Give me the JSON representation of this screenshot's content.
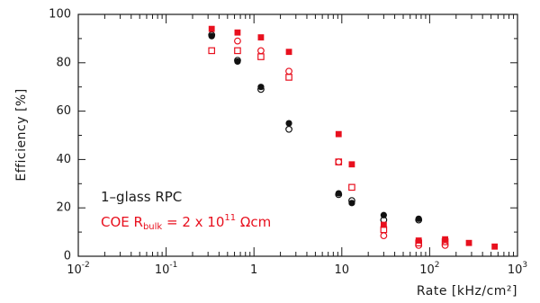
{
  "chart_data": {
    "type": "scatter",
    "xlabel": "Rate [kHz/cm²]",
    "ylabel": "Efficiency [%]",
    "x_scale": "log",
    "xlim": [
      0.01,
      1000
    ],
    "ylim": [
      0,
      100
    ],
    "grid": false,
    "yticks": [
      "0",
      "20",
      "40",
      "60",
      "80",
      "100"
    ],
    "xtick_major": [
      {
        "base": "10",
        "exp": "-2"
      },
      {
        "base": "10",
        "exp": "-1"
      },
      {
        "base": "1",
        "exp": ""
      },
      {
        "base": "10",
        "exp": ""
      },
      {
        "base": "10",
        "exp": "2"
      },
      {
        "base": "10",
        "exp": "3"
      }
    ],
    "annotations": {
      "line1": "1–glass RPC",
      "line2_prefix": "COE R",
      "line2_sub": "bulk",
      "line2_mid": " = 2 x 10",
      "line2_sup": "11",
      "line2_suffix": " Ωcm"
    },
    "series": [
      {
        "marker": "filled-circle",
        "color": "#111111",
        "points": [
          [
            0.33,
            91
          ],
          [
            0.65,
            80.5
          ],
          [
            1.2,
            70
          ],
          [
            2.5,
            55
          ],
          [
            9.2,
            26
          ],
          [
            13,
            22
          ],
          [
            30,
            17
          ],
          [
            75,
            15.5
          ]
        ]
      },
      {
        "marker": "open-circle",
        "color": "#111111",
        "points": [
          [
            0.33,
            91.5
          ],
          [
            0.65,
            81
          ],
          [
            1.2,
            69
          ],
          [
            2.5,
            52.5
          ],
          [
            9.2,
            25.5
          ],
          [
            13,
            23
          ],
          [
            30,
            15
          ],
          [
            75,
            15
          ]
        ]
      },
      {
        "marker": "filled-square",
        "color": "#e8101e",
        "points": [
          [
            0.33,
            94
          ],
          [
            0.65,
            92.5
          ],
          [
            1.2,
            90.5
          ],
          [
            2.5,
            84.5
          ],
          [
            9.2,
            50.5
          ],
          [
            13,
            38
          ],
          [
            30,
            13
          ],
          [
            75,
            6.5
          ],
          [
            150,
            7
          ],
          [
            280,
            5.5
          ],
          [
            550,
            4
          ]
        ]
      },
      {
        "marker": "open-square",
        "color": "#e8101e",
        "points": [
          [
            0.33,
            85
          ],
          [
            0.65,
            85
          ],
          [
            1.2,
            82.5
          ],
          [
            2.5,
            74
          ],
          [
            9.2,
            39
          ],
          [
            13,
            28.5
          ],
          [
            30,
            11
          ],
          [
            75,
            5.5
          ],
          [
            150,
            6
          ]
        ]
      },
      {
        "marker": "open-circle",
        "color": "#e8101e",
        "points": [
          [
            0.65,
            89
          ],
          [
            1.2,
            85
          ],
          [
            2.5,
            76.5
          ],
          [
            9.2,
            39
          ],
          [
            30,
            8.5
          ],
          [
            75,
            4.5
          ],
          [
            150,
            4.5
          ]
        ]
      }
    ]
  }
}
